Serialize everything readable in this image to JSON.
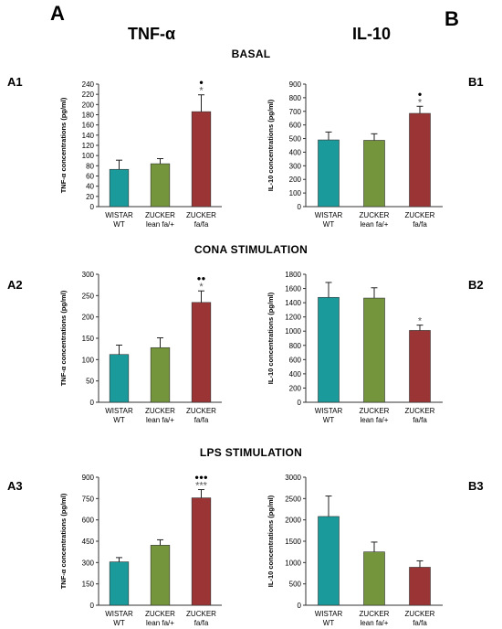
{
  "panel_letters": {
    "a": "A",
    "b": "B"
  },
  "column_titles": {
    "left": "TNF-α",
    "right": "IL-10"
  },
  "sections": {
    "basal": "BASAL",
    "cona": "CONA STIMULATION",
    "lps": "LPS STIMULATION"
  },
  "colors": {
    "wistar": "#1a9a9a",
    "lean": "#74953c",
    "fafa": "#9b3535"
  },
  "chart_data": [
    {
      "id": "A1",
      "type": "bar",
      "categories": [
        [
          "WISTAR",
          "WT"
        ],
        [
          "ZUCKER",
          "lean fa/+"
        ],
        [
          "ZUCKER",
          "fa/fa"
        ]
      ],
      "values": [
        73,
        84,
        186
      ],
      "errors": [
        18,
        10,
        33
      ],
      "ylabel": "TNF-α concentrations (pg/ml)",
      "ylim": [
        0,
        240
      ],
      "yticks": [
        0,
        20,
        40,
        60,
        80,
        100,
        120,
        140,
        160,
        180,
        200,
        220,
        240
      ],
      "annotations": [
        "",
        "",
        "*"
      ],
      "dots": [
        "",
        "",
        "●"
      ]
    },
    {
      "id": "A2",
      "type": "bar",
      "categories": [
        [
          "WISTAR",
          "WT"
        ],
        [
          "ZUCKER",
          "lean fa/+"
        ],
        [
          "ZUCKER",
          "fa/fa"
        ]
      ],
      "values": [
        112,
        128,
        234
      ],
      "errors": [
        22,
        23,
        27
      ],
      "ylabel": "TNF-α concentrations (pg/ml)",
      "ylim": [
        0,
        300
      ],
      "yticks": [
        0,
        50,
        100,
        150,
        200,
        250,
        300
      ],
      "annotations": [
        "",
        "",
        "*"
      ],
      "dots": [
        "",
        "",
        "●●"
      ]
    },
    {
      "id": "A3",
      "type": "bar",
      "categories": [
        [
          "WISTAR",
          "WT"
        ],
        [
          "ZUCKER",
          "lean fa/+"
        ],
        [
          "ZUCKER",
          "fa/fa"
        ]
      ],
      "values": [
        305,
        422,
        755
      ],
      "errors": [
        30,
        38,
        58
      ],
      "ylabel": "TNF-α concentrations (pg/ml)",
      "ylim": [
        0,
        900
      ],
      "yticks": [
        0,
        150,
        300,
        450,
        600,
        750,
        900
      ],
      "annotations": [
        "",
        "",
        "***"
      ],
      "dots": [
        "",
        "",
        "●●●"
      ]
    },
    {
      "id": "B1",
      "type": "bar",
      "categories": [
        [
          "WISTAR",
          "WT"
        ],
        [
          "ZUCKER",
          "lean fa/+"
        ],
        [
          "ZUCKER",
          "fa/fa"
        ]
      ],
      "values": [
        490,
        487,
        685
      ],
      "errors": [
        58,
        48,
        52
      ],
      "ylabel": "IL-10 concentrations (pg/ml)",
      "ylim": [
        0,
        900
      ],
      "yticks": [
        0,
        100,
        200,
        300,
        400,
        500,
        600,
        700,
        800,
        900
      ],
      "annotations": [
        "",
        "",
        "*"
      ],
      "dots": [
        "",
        "",
        "●"
      ]
    },
    {
      "id": "B2",
      "type": "bar",
      "categories": [
        [
          "WISTAR",
          "WT"
        ],
        [
          "ZUCKER",
          "lean fa/+"
        ],
        [
          "ZUCKER",
          "fa/fa"
        ]
      ],
      "values": [
        1475,
        1465,
        1010
      ],
      "errors": [
        210,
        145,
        75
      ],
      "ylabel": "IL-10 concentrations (pg/ml)",
      "ylim": [
        0,
        1800
      ],
      "yticks": [
        0,
        200,
        400,
        600,
        800,
        1000,
        1200,
        1400,
        1600,
        1800
      ],
      "annotations": [
        "",
        "",
        "*"
      ],
      "dots": [
        "",
        "",
        ""
      ]
    },
    {
      "id": "B3",
      "type": "bar",
      "categories": [
        [
          "WISTAR",
          "WT"
        ],
        [
          "ZUCKER",
          "lean fa/+"
        ],
        [
          "ZUCKER",
          "fa/fa"
        ]
      ],
      "values": [
        2080,
        1250,
        890
      ],
      "errors": [
        480,
        230,
        150
      ],
      "ylabel": "IL-10 concentrations (pg/ml)",
      "ylim": [
        0,
        3000
      ],
      "yticks": [
        0,
        500,
        1000,
        1500,
        2000,
        2500,
        3000
      ],
      "annotations": [
        "",
        "",
        ""
      ],
      "dots": [
        "",
        "",
        ""
      ]
    }
  ]
}
